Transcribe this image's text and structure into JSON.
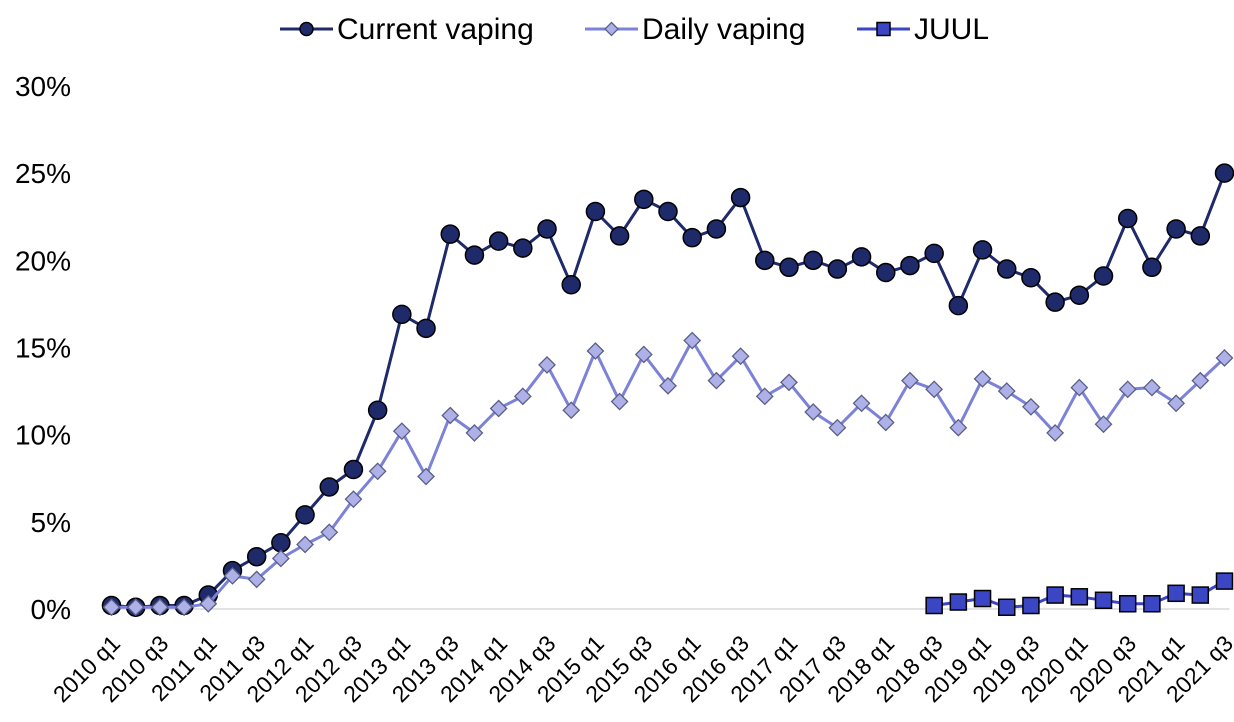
{
  "chart_data": {
    "type": "line",
    "title": "",
    "xlabel": "",
    "ylabel": "",
    "ylim": [
      0,
      30
    ],
    "yticks": [
      "0%",
      "5%",
      "10%",
      "15%",
      "20%",
      "25%",
      "30%"
    ],
    "grid": false,
    "legend_position": "top-center",
    "x": [
      "2010 q1",
      "2010 q2",
      "2010 q3",
      "2010 q4",
      "2011 q1",
      "2011 q2",
      "2011 q3",
      "2011 q4",
      "2012 q1",
      "2012 q2",
      "2012 q3",
      "2012 q4",
      "2013 q1",
      "2013 q2",
      "2013 q3",
      "2013 q4",
      "2014 q1",
      "2014 q2",
      "2014 q3",
      "2014 q4",
      "2015 q1",
      "2015 q2",
      "2015 q3",
      "2015 q4",
      "2016 q1",
      "2016 q2",
      "2016 q3",
      "2016 q4",
      "2017 q1",
      "2017 q2",
      "2017 q3",
      "2017 q4",
      "2018 q1",
      "2018 q2",
      "2018 q3",
      "2018 q4",
      "2019 q1",
      "2019 q2",
      "2019 q3",
      "2019 q4",
      "2020 q1",
      "2020 q2",
      "2020 q3",
      "2020 q4",
      "2021 q1",
      "2021 q2",
      "2021 q3"
    ],
    "xtick_labels": [
      "2010 q1",
      "2010 q3",
      "2011 q1",
      "2011 q3",
      "2012 q1",
      "2012 q3",
      "2013 q1",
      "2013 q3",
      "2014 q1",
      "2014 q3",
      "2015 q1",
      "2015 q3",
      "2016 q1",
      "2016 q3",
      "2017 q1",
      "2017 q3",
      "2018 q1",
      "2018 q3",
      "2019 q1",
      "2019 q3",
      "2020 q1",
      "2020 q3",
      "2021 q1",
      "2021 q3"
    ],
    "series": [
      {
        "name": "Current vaping",
        "color": "#1f2a6b",
        "marker": "circle",
        "values": [
          0.2,
          0.1,
          0.2,
          0.2,
          0.8,
          2.2,
          3.0,
          3.8,
          5.4,
          7.0,
          8.0,
          11.4,
          16.9,
          16.1,
          21.5,
          20.3,
          21.1,
          20.7,
          21.8,
          18.6,
          22.8,
          21.4,
          23.5,
          22.8,
          21.3,
          21.8,
          23.6,
          20.0,
          19.6,
          20.0,
          19.5,
          20.2,
          19.3,
          19.7,
          20.4,
          17.4,
          20.6,
          19.5,
          19.0,
          17.6,
          18.0,
          19.1,
          22.4,
          19.6,
          21.8,
          21.4,
          25.0
        ]
      },
      {
        "name": "Daily vaping",
        "color": "#7b82d8",
        "marker": "diamond",
        "values": [
          0.1,
          0.1,
          0.1,
          0.1,
          0.3,
          1.9,
          1.7,
          2.9,
          3.7,
          4.4,
          6.3,
          7.9,
          10.2,
          7.6,
          11.1,
          10.1,
          11.5,
          12.2,
          14.0,
          11.4,
          14.8,
          11.9,
          14.6,
          12.8,
          15.4,
          13.1,
          14.5,
          12.2,
          13.0,
          11.3,
          10.4,
          11.8,
          10.7,
          13.1,
          12.6,
          10.4,
          13.2,
          12.5,
          11.6,
          10.1,
          12.7,
          10.6,
          12.6,
          12.7,
          11.8,
          13.1,
          14.4
        ]
      },
      {
        "name": "JUUL",
        "color": "#3a46c4",
        "marker": "square",
        "values": [
          null,
          null,
          null,
          null,
          null,
          null,
          null,
          null,
          null,
          null,
          null,
          null,
          null,
          null,
          null,
          null,
          null,
          null,
          null,
          null,
          null,
          null,
          null,
          null,
          null,
          null,
          null,
          null,
          null,
          null,
          null,
          null,
          null,
          null,
          0.2,
          0.4,
          0.6,
          0.1,
          0.2,
          0.8,
          0.7,
          0.5,
          0.3,
          0.3,
          0.9,
          0.8,
          1.6
        ]
      }
    ]
  }
}
